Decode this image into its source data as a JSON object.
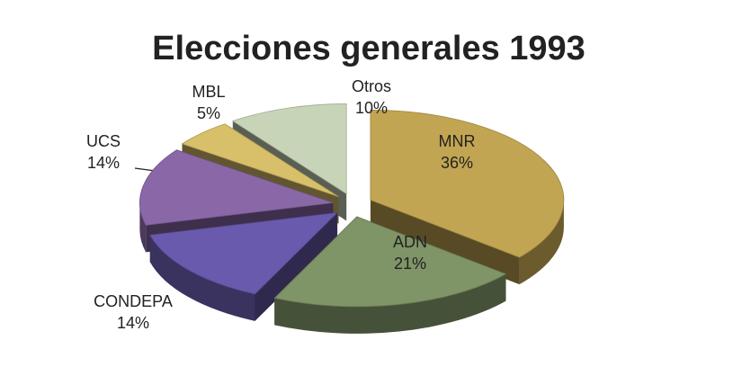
{
  "chart_data": {
    "type": "pie3d",
    "title": "Elecciones generales 1993",
    "categories": [
      "MNR",
      "ADN",
      "CONDEPA",
      "UCS",
      "MBL",
      "Otros"
    ],
    "values": [
      36,
      21,
      14,
      14,
      5,
      10
    ],
    "value_labels": [
      "36%",
      "21%",
      "14%",
      "14%",
      "5%",
      "10%"
    ],
    "colors": [
      "#c2a552",
      "#7f9467",
      "#6a5aad",
      "#8a68a8",
      "#d8bf6a",
      "#c8d4b8"
    ]
  }
}
